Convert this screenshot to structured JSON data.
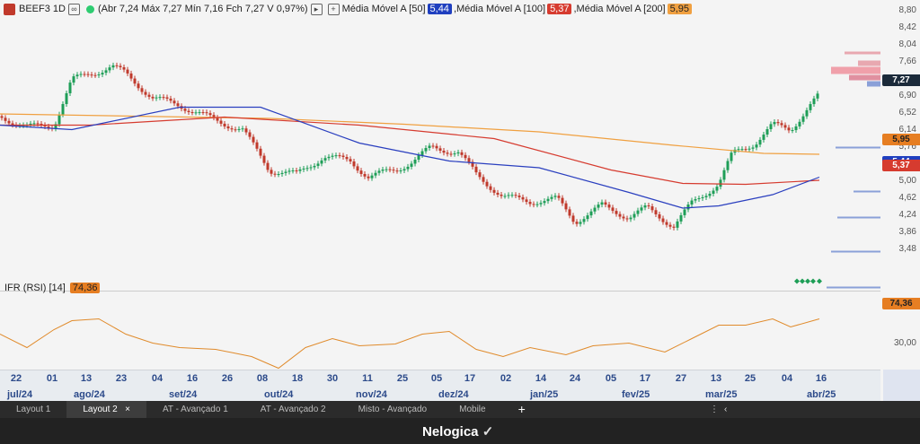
{
  "header": {
    "ticker": "BEEF3",
    "timeframe": "1D",
    "ohlc": "(Abr 7,24 Máx 7,27 Mín 7,16 Fch 7,27 V 0,97%)",
    "ma50_label": "Média Móvel A [50]",
    "ma50_value": "5,44",
    "ma100_label": "Média Móvel A [100]",
    "ma100_value": "5,37",
    "ma200_label": "Média Móvel A [200]",
    "ma200_value": "5,95"
  },
  "price_axis": {
    "ticks": [
      "8,80",
      "8,42",
      "8,04",
      "7,66",
      "7,28",
      "6,90",
      "6,52",
      "6,14",
      "5,76",
      "5,38",
      "5,00",
      "4,62",
      "4,24",
      "3,86",
      "3,48"
    ],
    "tags": [
      {
        "value": "7,27",
        "color": "#1b2a3a"
      },
      {
        "value": "5,95",
        "color": "#e67e22"
      },
      {
        "value": "5,44",
        "color": "#1f3fbf"
      },
      {
        "value": "5,37",
        "color": "#d63b2f"
      }
    ]
  },
  "rsi": {
    "label": "IFR (RSI) [14]",
    "value": "74,36",
    "ticks": [
      "30,00"
    ],
    "color": "#e67e22"
  },
  "date_axis": {
    "days": [
      "22",
      "01",
      "13",
      "23",
      "04",
      "16",
      "26",
      "08",
      "18",
      "30",
      "11",
      "25",
      "05",
      "17",
      "02",
      "14",
      "24",
      "05",
      "17",
      "27",
      "13",
      "25",
      "04",
      "16"
    ],
    "months": [
      "jul/24",
      "ago/24",
      "set/24",
      "out/24",
      "nov/24",
      "dez/24",
      "jan/25",
      "fev/25",
      "mar/25",
      "abr/25"
    ]
  },
  "tabs": [
    "Layout 1",
    "Layout 2",
    "AT - Avançado 1",
    "AT - Avançado 2",
    "Misto - Avançado",
    "Mobile"
  ],
  "tab_close": "×",
  "tab_add": "+",
  "toolbar_right": [
    "⋮",
    "‹"
  ],
  "brand": "Nelogica",
  "colors": {
    "ma50": "#1f3fbf",
    "ma100": "#d63b2f",
    "ma200": "#f0a040",
    "up": "#1e9e57",
    "down": "#c0392b"
  }
}
